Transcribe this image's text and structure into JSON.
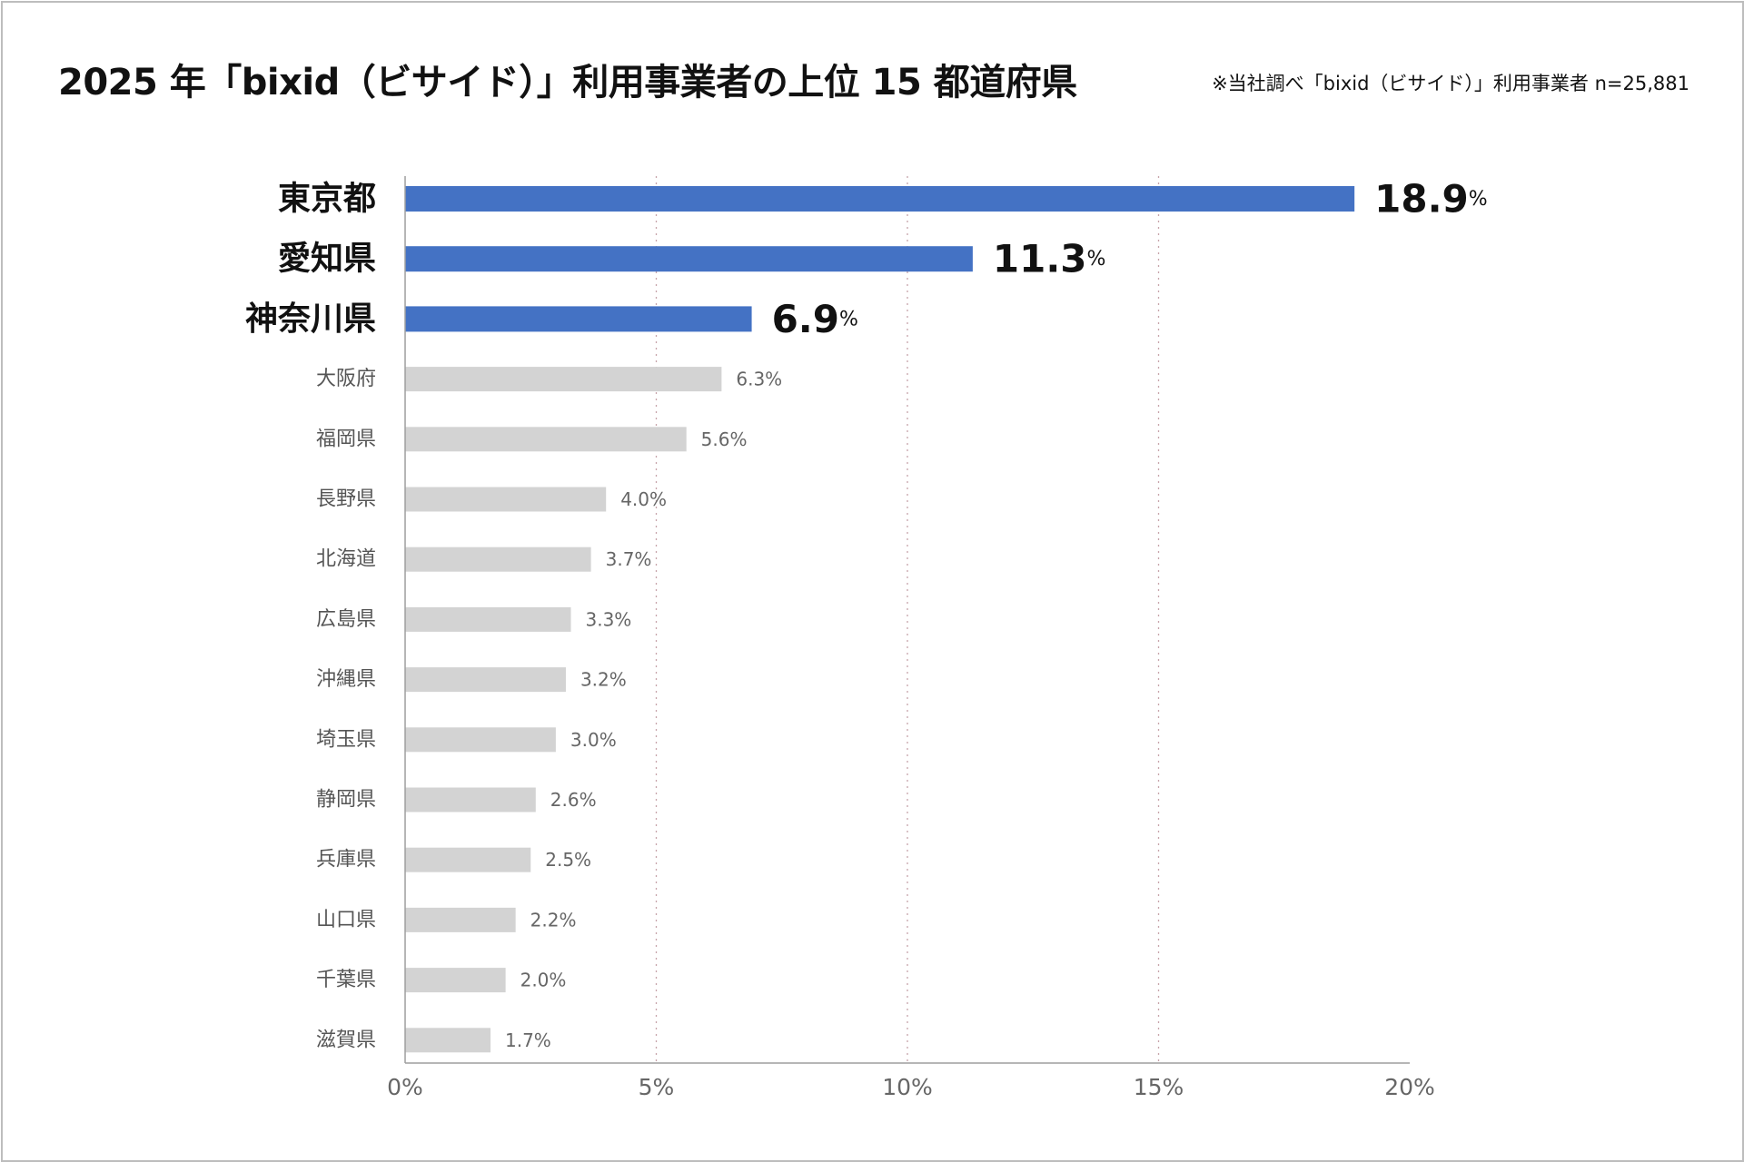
{
  "title": "2025 年「bixid（ビサイド）」利用事業者の上位 15 都道府県",
  "note": "※当社調べ「bixid（ビサイド）」利用事業者 n=25,881",
  "colors": {
    "highlight": "#4472c4",
    "normal": "#d3d3d3",
    "axis": "#9e9e9e",
    "grid": "#c7a3aa"
  },
  "chart_data": {
    "type": "bar",
    "orientation": "horizontal",
    "categories": [
      "東京都",
      "愛知県",
      "神奈川県",
      "大阪府",
      "福岡県",
      "長野県",
      "北海道",
      "広島県",
      "沖縄県",
      "埼玉県",
      "静岡県",
      "兵庫県",
      "山口県",
      "千葉県",
      "滋賀県"
    ],
    "values": [
      18.9,
      11.3,
      6.9,
      6.3,
      5.6,
      4.0,
      3.7,
      3.3,
      3.2,
      3.0,
      2.6,
      2.5,
      2.2,
      2.0,
      1.7
    ],
    "value_labels": [
      "18.9",
      "11.3",
      "6.9",
      "6.3%",
      "5.6%",
      "4.0%",
      "3.7%",
      "3.3%",
      "3.2%",
      "3.0%",
      "2.6%",
      "2.5%",
      "2.2%",
      "2.0%",
      "1.7%"
    ],
    "value_suffix": "%",
    "highlight_count": 3,
    "xlim": [
      0,
      20
    ],
    "xticks": [
      "0%",
      "5%",
      "10%",
      "15%",
      "20%"
    ],
    "grid": "vertical-dotted",
    "legend": "none"
  }
}
